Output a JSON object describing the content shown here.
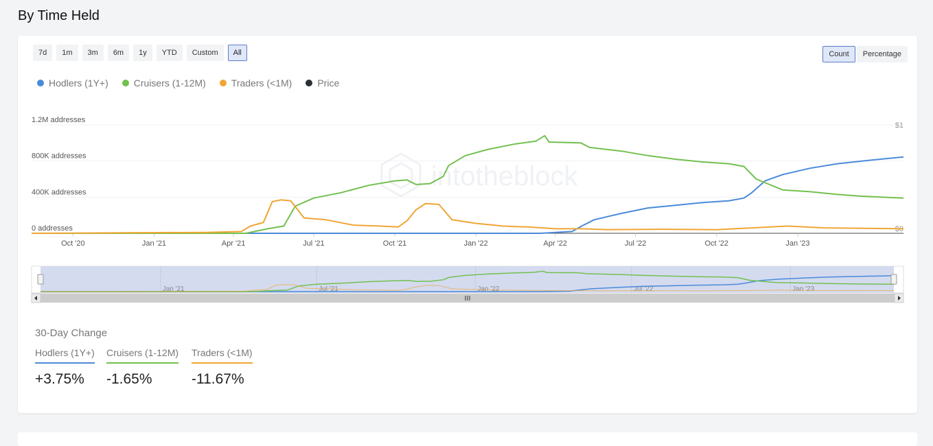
{
  "section_title": "By Time Held",
  "range_buttons": [
    "7d",
    "1m",
    "3m",
    "6m",
    "1y",
    "YTD",
    "Custom",
    "All"
  ],
  "range_active": "All",
  "mode_buttons": [
    "Count",
    "Percentage"
  ],
  "mode_active": "Count",
  "watermark": "intotheblock",
  "colors": {
    "hodlers": "#4a8ad9",
    "cruisers": "#72c04f",
    "traders": "#f0a534",
    "price": "#2b2f38"
  },
  "chart_data": {
    "type": "line",
    "title": "",
    "xlabel": "",
    "ylabel": "",
    "x_ticks": [
      "Oct '20",
      "Jan '21",
      "Apr '21",
      "Jul '21",
      "Oct '21",
      "Jan '22",
      "Apr '22",
      "Jul '22",
      "Oct '22",
      "Jan '23"
    ],
    "y_ticks": [
      "0 addresses",
      "400K addresses",
      "800K addresses",
      "1.2M addresses"
    ],
    "y_right_ticks": [
      "$0",
      "$1"
    ],
    "ylim": [
      0,
      1200000
    ],
    "legend": [
      "Hodlers (1Y+)",
      "Cruisers (1-12M)",
      "Traders (<1M)",
      "Price"
    ],
    "legend_position": "top-left",
    "navigator_ticks": [
      "Jan '21",
      "Jul '21",
      "Jan '22",
      "Jul '22",
      "Jan '23"
    ],
    "series": [
      {
        "name": "Hodlers (1Y+)",
        "key": "hodlers",
        "points": [
          [
            "2020-08-15",
            0
          ],
          [
            "2022-03-15",
            0
          ],
          [
            "2022-04-20",
            20000
          ],
          [
            "2022-05-01",
            80000
          ],
          [
            "2022-05-15",
            150000
          ],
          [
            "2022-06-15",
            220000
          ],
          [
            "2022-07-15",
            280000
          ],
          [
            "2022-08-15",
            310000
          ],
          [
            "2022-09-15",
            340000
          ],
          [
            "2022-10-15",
            360000
          ],
          [
            "2022-11-01",
            390000
          ],
          [
            "2022-11-10",
            450000
          ],
          [
            "2022-11-25",
            580000
          ],
          [
            "2022-12-15",
            650000
          ],
          [
            "2023-01-15",
            720000
          ],
          [
            "2023-02-15",
            770000
          ],
          [
            "2023-03-15",
            800000
          ],
          [
            "2023-04-15",
            830000
          ],
          [
            "2023-05-01",
            845000
          ]
        ]
      },
      {
        "name": "Cruisers (1-12M)",
        "key": "cruisers",
        "points": [
          [
            "2020-08-15",
            0
          ],
          [
            "2021-04-15",
            0
          ],
          [
            "2021-05-10",
            50000
          ],
          [
            "2021-05-28",
            80000
          ],
          [
            "2021-06-10",
            300000
          ],
          [
            "2021-07-01",
            390000
          ],
          [
            "2021-08-01",
            450000
          ],
          [
            "2021-09-01",
            530000
          ],
          [
            "2021-10-01",
            580000
          ],
          [
            "2021-10-15",
            590000
          ],
          [
            "2021-10-25",
            540000
          ],
          [
            "2021-11-10",
            550000
          ],
          [
            "2021-11-25",
            630000
          ],
          [
            "2021-12-01",
            750000
          ],
          [
            "2021-12-20",
            860000
          ],
          [
            "2022-01-15",
            930000
          ],
          [
            "2022-02-15",
            990000
          ],
          [
            "2022-03-10",
            1020000
          ],
          [
            "2022-03-20",
            1080000
          ],
          [
            "2022-03-25",
            1010000
          ],
          [
            "2022-04-30",
            1000000
          ],
          [
            "2022-05-10",
            950000
          ],
          [
            "2022-06-15",
            910000
          ],
          [
            "2022-07-15",
            860000
          ],
          [
            "2022-08-15",
            820000
          ],
          [
            "2022-09-15",
            790000
          ],
          [
            "2022-10-15",
            770000
          ],
          [
            "2022-11-01",
            740000
          ],
          [
            "2022-11-15",
            600000
          ],
          [
            "2022-12-15",
            480000
          ],
          [
            "2023-01-15",
            460000
          ],
          [
            "2023-02-15",
            430000
          ],
          [
            "2023-03-15",
            410000
          ],
          [
            "2023-05-01",
            390000
          ]
        ]
      },
      {
        "name": "Traders (<1M)",
        "key": "traders",
        "points": [
          [
            "2020-08-15",
            0
          ],
          [
            "2020-12-01",
            5000
          ],
          [
            "2021-03-01",
            10000
          ],
          [
            "2021-04-10",
            20000
          ],
          [
            "2021-04-20",
            80000
          ],
          [
            "2021-05-05",
            120000
          ],
          [
            "2021-05-15",
            350000
          ],
          [
            "2021-05-25",
            370000
          ],
          [
            "2021-06-05",
            360000
          ],
          [
            "2021-06-20",
            170000
          ],
          [
            "2021-07-15",
            150000
          ],
          [
            "2021-08-15",
            90000
          ],
          [
            "2021-09-15",
            80000
          ],
          [
            "2021-10-05",
            70000
          ],
          [
            "2021-10-15",
            140000
          ],
          [
            "2021-10-25",
            260000
          ],
          [
            "2021-11-05",
            330000
          ],
          [
            "2021-11-20",
            320000
          ],
          [
            "2021-12-05",
            150000
          ],
          [
            "2022-01-01",
            110000
          ],
          [
            "2022-02-01",
            80000
          ],
          [
            "2022-03-01",
            70000
          ],
          [
            "2022-04-01",
            50000
          ],
          [
            "2022-05-01",
            50000
          ],
          [
            "2022-06-01",
            40000
          ],
          [
            "2022-08-01",
            45000
          ],
          [
            "2022-10-01",
            40000
          ],
          [
            "2022-12-01",
            70000
          ],
          [
            "2022-12-20",
            80000
          ],
          [
            "2023-02-01",
            60000
          ],
          [
            "2023-05-01",
            50000
          ]
        ]
      },
      {
        "name": "Price",
        "key": "price",
        "points": []
      }
    ]
  },
  "change": {
    "title": "30-Day Change",
    "items": [
      {
        "label": "Hodlers (1Y+)",
        "value": "+3.75%",
        "key": "hodlers"
      },
      {
        "label": "Cruisers (1-12M)",
        "value": "-1.65%",
        "key": "cruisers"
      },
      {
        "label": "Traders (<1M)",
        "value": "-11.67%",
        "key": "traders"
      }
    ]
  }
}
